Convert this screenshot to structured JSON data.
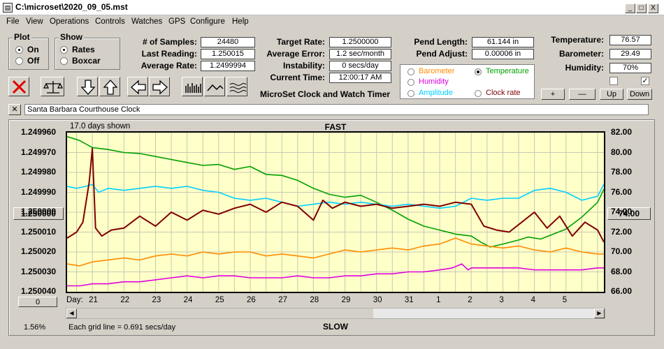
{
  "window": {
    "title": "C:\\microset\\2020_09_05.mst",
    "controls": [
      "_",
      "□",
      "X"
    ]
  },
  "menu": [
    "File",
    "View",
    "Operations",
    "Controls",
    "Watches",
    "GPS",
    "Configure",
    "Help"
  ],
  "plot_group": {
    "title": "Plot",
    "options": [
      "On",
      "Off"
    ],
    "selected": "On"
  },
  "show_group": {
    "title": "Show",
    "options": [
      "Rates",
      "Boxcar"
    ],
    "selected": "Rates"
  },
  "stats": {
    "samples_label": "# of Samples:",
    "samples": "24480",
    "last_label": "Last Reading:",
    "last": "1.250015",
    "avg_label": "Average Rate:",
    "avg": "1.2499994",
    "target_label": "Target Rate:",
    "target": "1.2500000",
    "avg_err_label": "Average Error:",
    "avg_err": "1.2 sec/month",
    "instab_label": "Instability:",
    "instab": "0 secs/day",
    "time_label": "Current Time:",
    "time": "12:00:17 AM",
    "pend_len_label": "Pend Length:",
    "pend_len": "61.144 in",
    "pend_adj_label": "Pend Adjust:",
    "pend_adj": "0.00006 in",
    "temp_label": "Temperature:",
    "temp": "76.57",
    "baro_label": "Barometer:",
    "baro": "29.49",
    "hum_label": "Humidity:",
    "hum": "70%"
  },
  "app_caption": "MicroSet Clock and Watch Timer",
  "legend": {
    "items": [
      {
        "label": "Barometer",
        "color": "#ff8c00",
        "selected": false
      },
      {
        "label": "Temperature",
        "color": "#00a000",
        "selected": true
      },
      {
        "label": "Humidity",
        "color": "#e000e0",
        "selected": false
      },
      {
        "label": "Amplitude",
        "color": "#00d0ff",
        "selected": false
      },
      {
        "label": "Clock rate",
        "color": "#800000",
        "selected": false
      }
    ]
  },
  "adjust_buttons": [
    "+",
    "—",
    "Up",
    "Down"
  ],
  "checkboxes": [
    false,
    true
  ],
  "clock_name": "Santa Barbara Courthouse Clock",
  "close_x": "✕",
  "plot": {
    "days_shown": "17.0 days shown",
    "top_label": "FAST",
    "bottom_label": "SLOW",
    "grid_note": "Each grid line = 0.691 secs/day",
    "left_value_button": "1.250000",
    "right_value_button": "74.00",
    "zero_button": "0",
    "percent": "1.56%",
    "day_prefix": "Day:"
  },
  "chart_data": {
    "type": "line",
    "x_unit": "day",
    "x_ticks": [
      "21",
      "22",
      "23",
      "24",
      "25",
      "26",
      "27",
      "28",
      "29",
      "30",
      "31",
      "1",
      "2",
      "3",
      "4",
      "5"
    ],
    "x_range": [
      20.2,
      37.2
    ],
    "y_left_ticks": [
      "1.249960",
      "1.249970",
      "1.249980",
      "1.249990",
      "1.250000",
      "1.250010",
      "1.250020",
      "1.250030",
      "1.250040"
    ],
    "y_left_range": [
      1.24996,
      1.25004
    ],
    "y_left_inverted": true,
    "y_right_ticks": [
      "82.00",
      "80.00",
      "78.00",
      "76.00",
      "74.00",
      "72.00",
      "70.00",
      "68.00",
      "66.00"
    ],
    "y_right_range": [
      66,
      82
    ],
    "grid": true,
    "series": [
      {
        "name": "Temperature",
        "color": "#00a000",
        "axis": "right",
        "x": [
          20.2,
          20.6,
          21.0,
          21.5,
          22.0,
          22.5,
          23.0,
          23.5,
          24.0,
          24.5,
          25.0,
          25.5,
          26.0,
          26.5,
          27.0,
          27.5,
          28.0,
          28.5,
          29.0,
          29.5,
          30.0,
          30.5,
          31.0,
          31.5,
          32.0,
          32.5,
          33.0,
          33.3,
          33.6,
          34.0,
          34.5,
          34.8,
          35.2,
          35.6,
          36.0,
          36.5,
          37.0,
          37.2
        ],
        "y": [
          81.6,
          81.2,
          80.5,
          80.3,
          80.0,
          79.9,
          79.6,
          79.3,
          79.0,
          78.7,
          78.8,
          78.3,
          78.6,
          77.8,
          77.7,
          77.2,
          76.4,
          75.8,
          75.5,
          75.7,
          75.0,
          74.2,
          73.3,
          72.6,
          72.2,
          71.8,
          71.6,
          71.0,
          70.5,
          70.8,
          71.2,
          71.5,
          71.3,
          71.8,
          72.3,
          73.5,
          75.0,
          76.3
        ]
      },
      {
        "name": "Amplitude",
        "color": "#00d0ff",
        "axis": "left",
        "x": [
          20.2,
          20.5,
          20.8,
          21.0,
          21.2,
          21.5,
          22.0,
          22.5,
          23.0,
          23.5,
          24.0,
          24.5,
          25.0,
          25.5,
          26.0,
          26.5,
          27.0,
          27.5,
          28.0,
          28.5,
          29.0,
          29.5,
          30.0,
          30.5,
          31.0,
          31.5,
          32.0,
          32.5,
          33.0,
          33.5,
          34.0,
          34.5,
          35.0,
          35.5,
          36.0,
          36.5,
          37.0,
          37.2
        ],
        "y": [
          1.249987,
          1.249988,
          1.249987,
          1.249986,
          1.24999,
          1.249988,
          1.249989,
          1.249988,
          1.249987,
          1.249988,
          1.249987,
          1.249989,
          1.24999,
          1.249993,
          1.249994,
          1.249993,
          1.249995,
          1.249997,
          1.249996,
          1.249995,
          1.249996,
          1.249995,
          1.249996,
          1.249997,
          1.249996,
          1.249997,
          1.249998,
          1.249997,
          1.249993,
          1.249994,
          1.249993,
          1.249993,
          1.249989,
          1.249988,
          1.24999,
          1.249994,
          1.249992,
          1.249986
        ]
      },
      {
        "name": "Clock rate",
        "color": "#800000",
        "axis": "left",
        "x": [
          20.2,
          20.5,
          20.7,
          20.9,
          21.0,
          21.1,
          21.3,
          21.6,
          22.0,
          22.5,
          23.0,
          23.5,
          24.0,
          24.5,
          25.0,
          25.5,
          26.0,
          26.5,
          27.0,
          27.5,
          28.0,
          28.3,
          28.6,
          29.0,
          29.5,
          30.0,
          30.5,
          31.0,
          31.5,
          32.0,
          32.5,
          33.0,
          33.4,
          33.8,
          34.2,
          34.6,
          35.0,
          35.4,
          35.8,
          36.2,
          36.6,
          37.0,
          37.2
        ],
        "y": [
          1.250013,
          1.25001,
          1.250005,
          1.249985,
          1.249968,
          1.250008,
          1.250012,
          1.250009,
          1.250008,
          1.250002,
          1.250007,
          1.25,
          1.250004,
          1.249999,
          1.250001,
          1.249998,
          1.249996,
          1.25,
          1.249995,
          1.249997,
          1.250004,
          1.249994,
          1.249998,
          1.249995,
          1.249997,
          1.249996,
          1.249998,
          1.249997,
          1.249996,
          1.249997,
          1.249995,
          1.249996,
          1.250007,
          1.250009,
          1.25001,
          1.250005,
          1.25,
          1.250008,
          1.250002,
          1.250012,
          1.250005,
          1.250009,
          1.250015
        ]
      },
      {
        "name": "Barometer",
        "color": "#ff8c00",
        "axis": "left",
        "x": [
          20.2,
          20.6,
          21.0,
          21.5,
          22.0,
          22.5,
          23.0,
          23.5,
          24.0,
          24.5,
          25.0,
          25.5,
          26.0,
          26.5,
          27.0,
          27.5,
          28.0,
          28.5,
          29.0,
          29.5,
          30.0,
          30.5,
          31.0,
          31.5,
          32.0,
          32.5,
          33.0,
          33.5,
          34.0,
          34.5,
          35.0,
          35.5,
          36.0,
          36.5,
          37.0,
          37.2
        ],
        "y": [
          1.250026,
          1.250027,
          1.250025,
          1.250024,
          1.250023,
          1.250024,
          1.250022,
          1.250021,
          1.250022,
          1.25002,
          1.250021,
          1.25002,
          1.25002,
          1.250022,
          1.250021,
          1.250022,
          1.250023,
          1.250021,
          1.250019,
          1.25002,
          1.250019,
          1.250018,
          1.250019,
          1.250017,
          1.250016,
          1.250013,
          1.250016,
          1.250017,
          1.250018,
          1.250017,
          1.250019,
          1.25002,
          1.250018,
          1.25002,
          1.250021,
          1.250021
        ]
      },
      {
        "name": "Humidity",
        "color": "#e000e0",
        "axis": "left",
        "x": [
          20.2,
          20.6,
          21.0,
          21.5,
          22.0,
          22.5,
          23.0,
          23.5,
          24.0,
          24.5,
          25.0,
          25.5,
          26.0,
          26.5,
          27.0,
          27.5,
          28.0,
          28.5,
          29.0,
          29.5,
          30.0,
          30.5,
          31.0,
          31.5,
          32.0,
          32.4,
          32.7,
          32.9,
          33.0,
          33.5,
          34.0,
          34.5,
          35.0,
          35.5,
          36.0,
          36.5,
          37.0,
          37.2
        ],
        "y": [
          1.250037,
          1.250037,
          1.250036,
          1.250036,
          1.250035,
          1.250035,
          1.250034,
          1.250033,
          1.250032,
          1.250033,
          1.250032,
          1.250032,
          1.250033,
          1.250033,
          1.250033,
          1.250032,
          1.250033,
          1.250033,
          1.250032,
          1.250032,
          1.250031,
          1.250031,
          1.25003,
          1.25003,
          1.250029,
          1.250028,
          1.250026,
          1.250029,
          1.250028,
          1.250028,
          1.250028,
          1.250028,
          1.250029,
          1.250029,
          1.250029,
          1.250029,
          1.250028,
          1.250028
        ]
      }
    ]
  }
}
